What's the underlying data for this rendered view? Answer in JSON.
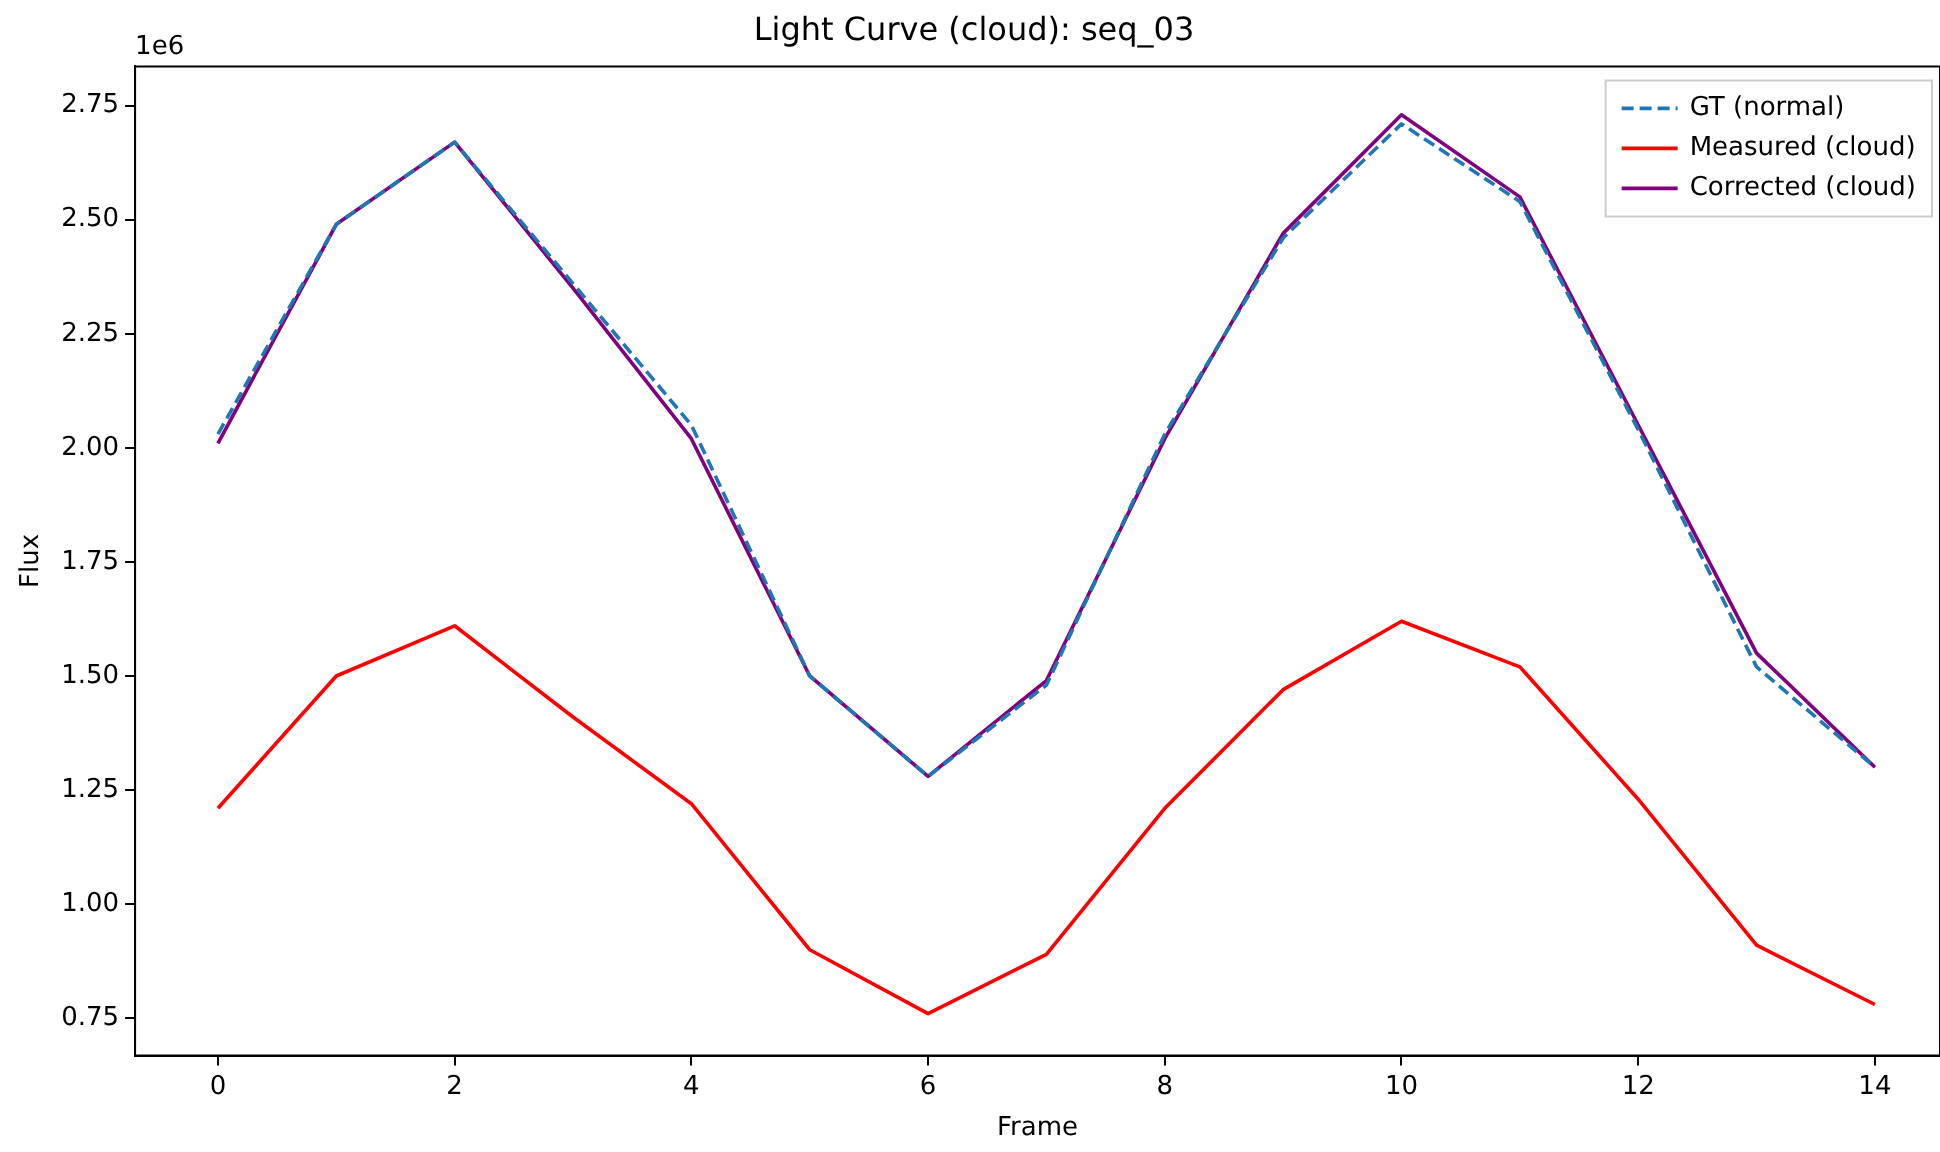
{
  "chart_data": {
    "type": "line",
    "title": "Light Curve (cloud): seq_03",
    "xlabel": "Frame",
    "ylabel": "Flux",
    "annotations": [
      "1e6"
    ],
    "x": [
      0,
      1,
      2,
      3,
      4,
      5,
      6,
      7,
      8,
      9,
      10,
      11,
      12,
      13,
      14
    ],
    "series": [
      {
        "name": "GT (normal)",
        "color": "#1f77b4",
        "line_style": "dashed",
        "values": [
          2.03,
          2.49,
          2.67,
          2.36,
          2.05,
          1.5,
          1.28,
          1.48,
          2.03,
          2.46,
          2.71,
          2.54,
          2.04,
          1.52,
          1.3
        ]
      },
      {
        "name": "Measured (cloud)",
        "color": "#ff0000",
        "line_style": "solid",
        "values": [
          1.21,
          1.5,
          1.61,
          1.41,
          1.22,
          0.9,
          0.76,
          0.89,
          1.21,
          1.47,
          1.62,
          1.52,
          1.23,
          0.91,
          0.78
        ]
      },
      {
        "name": "Corrected (cloud)",
        "color": "#800080",
        "line_style": "solid",
        "values": [
          2.01,
          2.49,
          2.67,
          2.35,
          2.02,
          1.5,
          1.28,
          1.49,
          2.02,
          2.47,
          2.73,
          2.55,
          2.05,
          1.55,
          1.3
        ]
      }
    ],
    "xlim": [
      -0.7,
      14.55
    ],
    "xticks": [
      0,
      2,
      4,
      6,
      8,
      10,
      12,
      14
    ],
    "ylim": [
      0.668,
      2.836
    ],
    "yticks": [
      {
        "value": 0.75,
        "label": "0.75"
      },
      {
        "value": 1,
        "label": "1.00"
      },
      {
        "value": 1.25,
        "label": "1.25"
      },
      {
        "value": 1.5,
        "label": "1.50"
      },
      {
        "value": 1.75,
        "label": "1.75"
      },
      {
        "value": 2,
        "label": "2.00"
      },
      {
        "value": 2.25,
        "label": "2.25"
      },
      {
        "value": 2.5,
        "label": "2.50"
      },
      {
        "value": 2.75,
        "label": "2.75"
      }
    ],
    "grid": false,
    "legend": "top right",
    "marker": "none"
  }
}
